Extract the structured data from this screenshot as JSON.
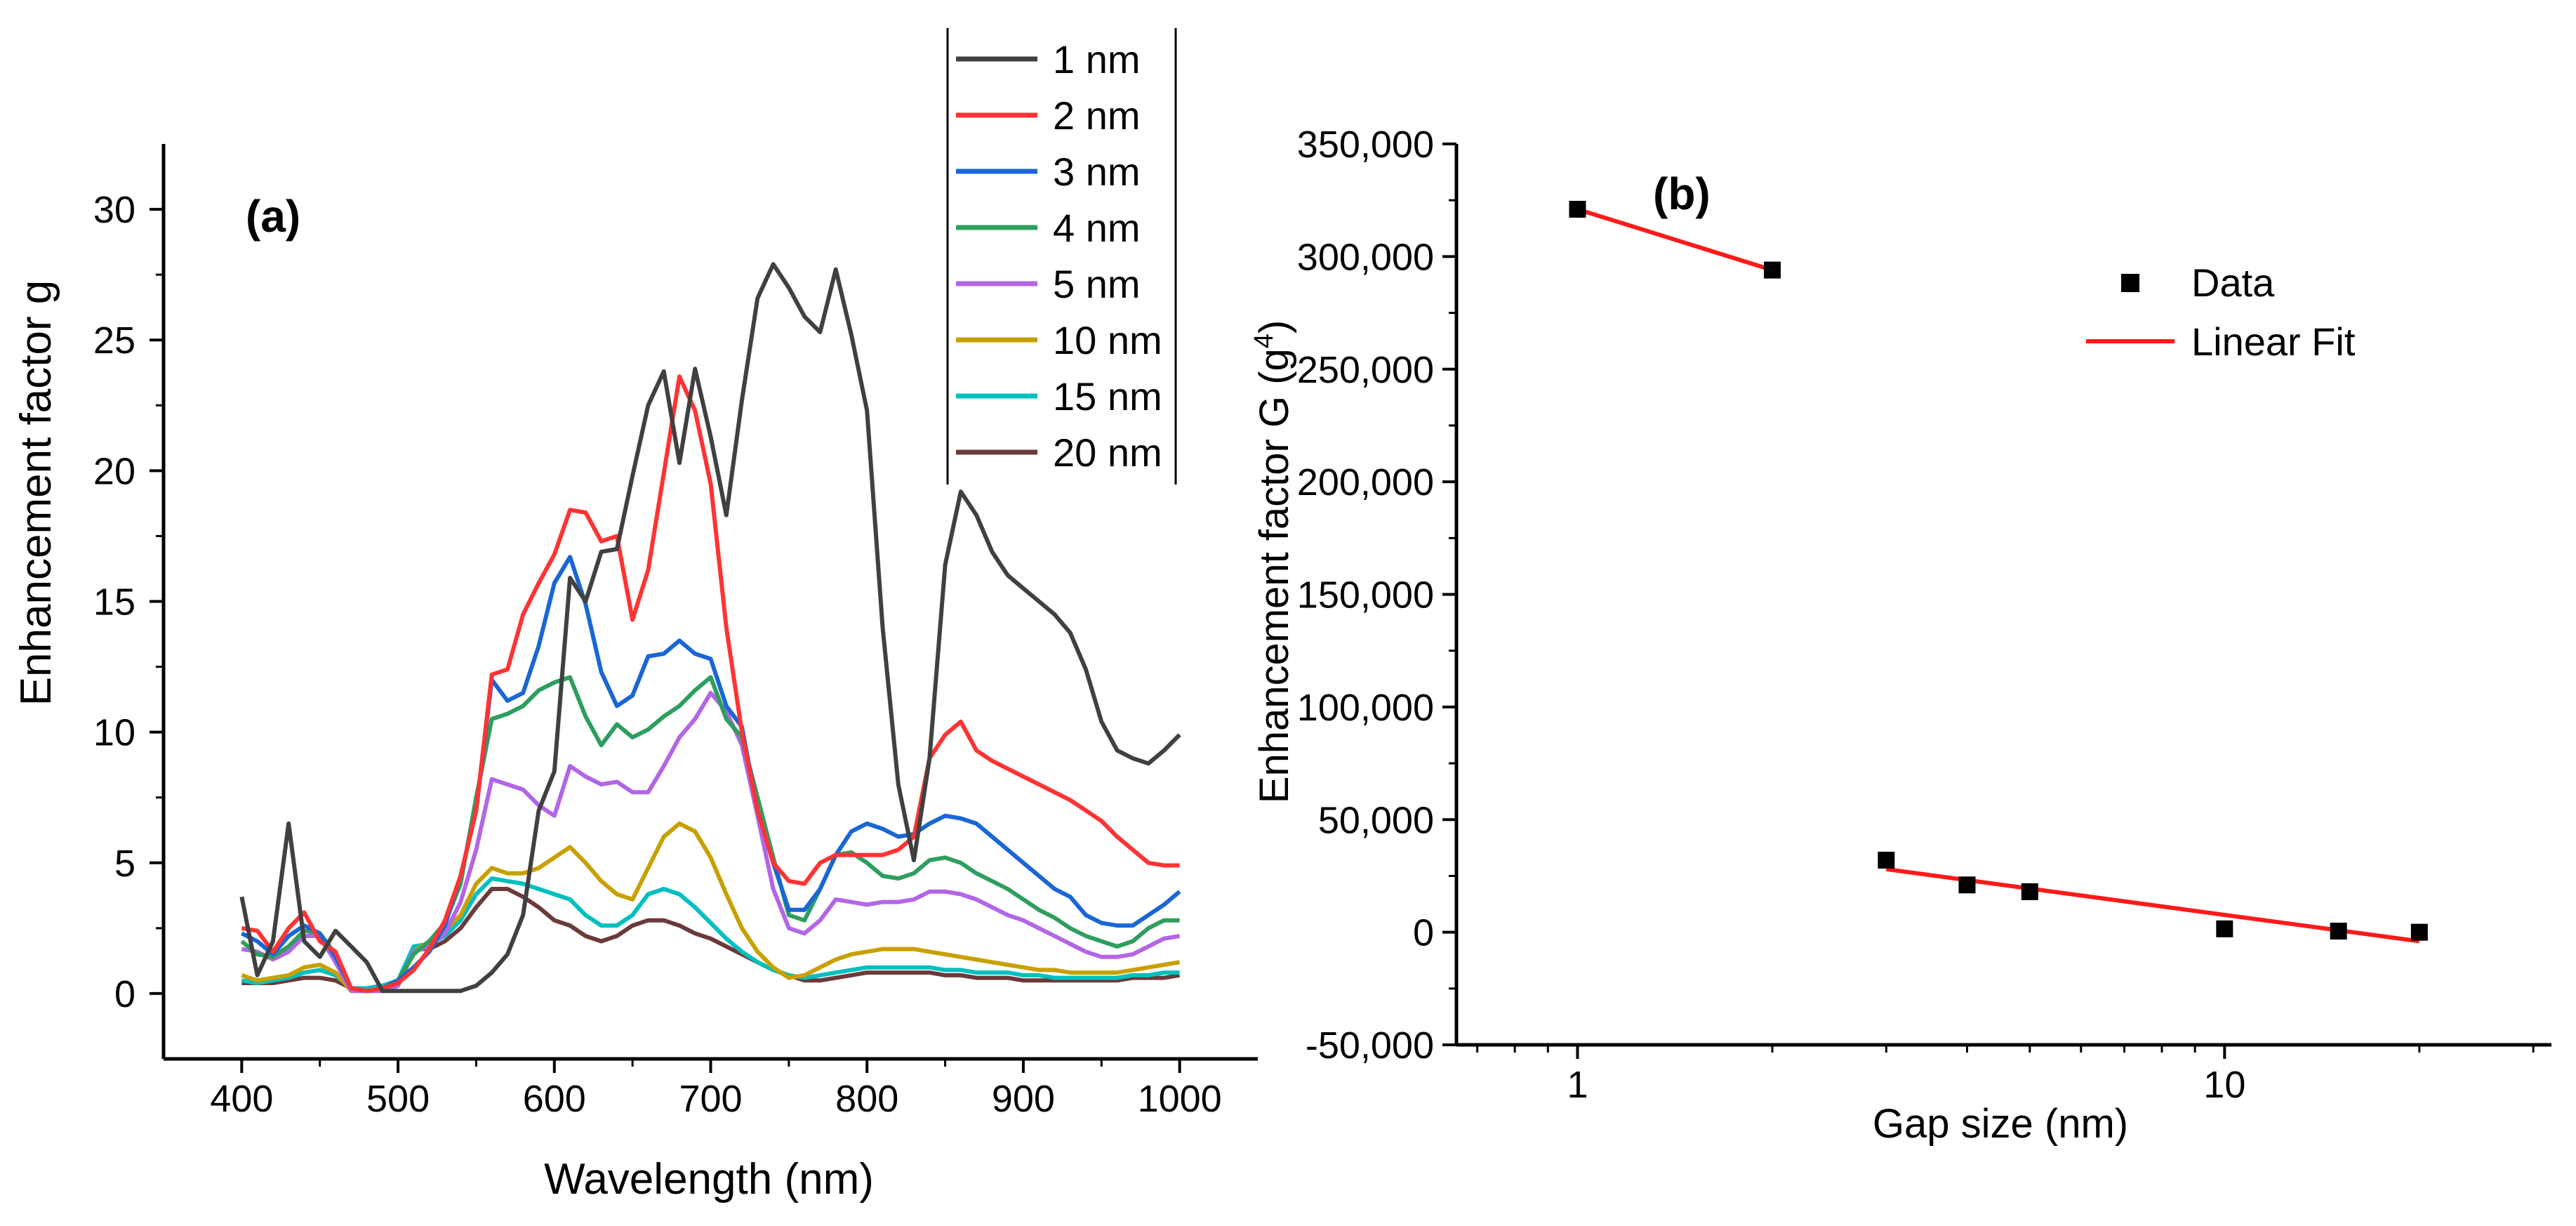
{
  "chart_data": [
    {
      "panel_label": "(a)",
      "type": "line",
      "xlabel": "Wavelength (nm)",
      "ylabel": "Enhancement factor g",
      "xlim": [
        350,
        1050
      ],
      "ylim": [
        -2.5,
        32.5
      ],
      "xticks": [
        400,
        500,
        600,
        700,
        800,
        900,
        1000
      ],
      "yticks": [
        0,
        5,
        10,
        15,
        20,
        25,
        30
      ],
      "x": [
        400,
        410,
        420,
        430,
        440,
        450,
        460,
        470,
        480,
        490,
        500,
        510,
        520,
        530,
        540,
        550,
        560,
        570,
        580,
        590,
        600,
        610,
        620,
        630,
        640,
        650,
        660,
        670,
        680,
        690,
        700,
        710,
        720,
        730,
        740,
        750,
        760,
        770,
        780,
        790,
        800,
        810,
        820,
        830,
        840,
        850,
        860,
        870,
        880,
        890,
        900,
        910,
        920,
        930,
        940,
        950,
        960,
        970,
        980,
        990,
        1000
      ],
      "legend_position": "top-center",
      "series": [
        {
          "name": "1 nm",
          "color": "#404040",
          "values": [
            3.7,
            0.7,
            2.0,
            6.5,
            2.0,
            1.4,
            2.4,
            1.8,
            1.2,
            0.1,
            0.1,
            0.1,
            0.1,
            0.1,
            0.1,
            0.3,
            0.8,
            1.5,
            3.0,
            7.0,
            8.5,
            15.9,
            15.0,
            16.9,
            17.0,
            19.8,
            22.5,
            23.8,
            20.3,
            23.9,
            21.3,
            18.3,
            22.7,
            26.6,
            27.9,
            27.0,
            25.9,
            25.3,
            27.7,
            25.2,
            22.3,
            14.0,
            8.0,
            5.1,
            9.0,
            16.4,
            19.2,
            18.3,
            16.9,
            16.0,
            15.5,
            15.0,
            14.5,
            13.8,
            12.4,
            10.4,
            9.3,
            9.0,
            8.8,
            9.3,
            9.9
          ]
        },
        {
          "name": "2 nm",
          "color": "#ff3333",
          "values": [
            2.5,
            2.4,
            1.6,
            2.5,
            3.1,
            2.0,
            1.6,
            0.2,
            0.1,
            0.2,
            0.4,
            0.9,
            1.7,
            2.8,
            4.5,
            7.0,
            12.2,
            12.4,
            14.5,
            15.7,
            16.8,
            18.5,
            18.4,
            17.3,
            17.5,
            14.3,
            16.2,
            19.9,
            23.6,
            22.3,
            19.5,
            14.0,
            10.0,
            7.0,
            5.0,
            4.3,
            4.2,
            5.0,
            5.3,
            5.3,
            5.3,
            5.3,
            5.5,
            6.0,
            9.0,
            9.9,
            10.4,
            9.3,
            8.9,
            8.6,
            8.3,
            8.0,
            7.7,
            7.4,
            7.0,
            6.6,
            6.0,
            5.5,
            5.0,
            4.9,
            4.9
          ]
        },
        {
          "name": "3 nm",
          "color": "#1a66d6",
          "values": [
            2.3,
            2.0,
            1.5,
            2.2,
            2.6,
            2.3,
            1.4,
            0.2,
            0.1,
            0.2,
            0.5,
            1.0,
            1.6,
            2.6,
            4.5,
            7.0,
            12.0,
            11.2,
            11.5,
            13.3,
            15.7,
            16.7,
            14.9,
            12.3,
            11.0,
            11.4,
            12.9,
            13.0,
            13.5,
            13.0,
            12.8,
            11.0,
            10.2,
            7.0,
            5.0,
            3.2,
            3.2,
            4.0,
            5.3,
            6.2,
            6.5,
            6.3,
            6.0,
            6.1,
            6.5,
            6.8,
            6.7,
            6.5,
            6.0,
            5.5,
            5.0,
            4.5,
            4.0,
            3.7,
            3.0,
            2.7,
            2.6,
            2.6,
            3.0,
            3.4,
            3.9
          ]
        },
        {
          "name": "4 nm",
          "color": "#2e9e5e",
          "values": [
            2.0,
            1.5,
            1.4,
            1.8,
            2.4,
            2.3,
            1.5,
            0.2,
            0.1,
            0.2,
            0.5,
            1.5,
            2.0,
            2.7,
            4.2,
            7.5,
            10.5,
            10.7,
            11.0,
            11.6,
            11.9,
            12.1,
            10.6,
            9.5,
            10.3,
            9.8,
            10.1,
            10.6,
            11.0,
            11.6,
            12.1,
            10.5,
            9.8,
            7.5,
            5.2,
            3.0,
            2.8,
            4.0,
            5.3,
            5.4,
            5.0,
            4.5,
            4.4,
            4.6,
            5.1,
            5.2,
            5.0,
            4.6,
            4.3,
            4.0,
            3.6,
            3.2,
            2.9,
            2.5,
            2.2,
            2.0,
            1.8,
            2.0,
            2.5,
            2.8,
            2.8
          ]
        },
        {
          "name": "5 nm",
          "color": "#b266e6",
          "values": [
            1.7,
            1.6,
            1.3,
            1.6,
            2.2,
            2.2,
            1.2,
            0.1,
            0.1,
            0.1,
            0.3,
            1.6,
            1.8,
            2.3,
            3.5,
            5.5,
            8.2,
            8.0,
            7.8,
            7.2,
            6.8,
            8.7,
            8.3,
            8.0,
            8.1,
            7.7,
            7.7,
            8.7,
            9.8,
            10.5,
            11.5,
            10.8,
            9.5,
            6.8,
            4.0,
            2.5,
            2.3,
            2.8,
            3.6,
            3.5,
            3.4,
            3.5,
            3.5,
            3.6,
            3.9,
            3.9,
            3.8,
            3.6,
            3.3,
            3.0,
            2.8,
            2.5,
            2.2,
            1.9,
            1.6,
            1.4,
            1.4,
            1.5,
            1.8,
            2.1,
            2.2
          ]
        },
        {
          "name": "10 nm",
          "color": "#c8a000",
          "values": [
            0.7,
            0.5,
            0.6,
            0.7,
            1.0,
            1.1,
            0.8,
            0.1,
            0.1,
            0.1,
            0.3,
            1.6,
            2.0,
            2.4,
            3.0,
            4.2,
            4.8,
            4.6,
            4.6,
            4.8,
            5.2,
            5.6,
            5.0,
            4.3,
            3.8,
            3.6,
            4.8,
            6.0,
            6.5,
            6.2,
            5.2,
            3.8,
            2.5,
            1.6,
            1.0,
            0.6,
            0.7,
            1.0,
            1.3,
            1.5,
            1.6,
            1.7,
            1.7,
            1.7,
            1.6,
            1.5,
            1.4,
            1.3,
            1.2,
            1.1,
            1.0,
            0.9,
            0.9,
            0.8,
            0.8,
            0.8,
            0.8,
            0.9,
            1.0,
            1.1,
            1.2
          ]
        },
        {
          "name": "15 nm",
          "color": "#00bfbf",
          "values": [
            0.5,
            0.4,
            0.5,
            0.6,
            0.8,
            0.9,
            0.7,
            0.2,
            0.2,
            0.3,
            0.5,
            1.8,
            1.9,
            2.2,
            2.8,
            3.8,
            4.4,
            4.3,
            4.2,
            4.0,
            3.8,
            3.6,
            3.0,
            2.6,
            2.6,
            3.0,
            3.8,
            4.0,
            3.8,
            3.3,
            2.7,
            2.1,
            1.6,
            1.2,
            0.9,
            0.7,
            0.6,
            0.7,
            0.8,
            0.9,
            1.0,
            1.0,
            1.0,
            1.0,
            1.0,
            0.9,
            0.9,
            0.8,
            0.8,
            0.8,
            0.7,
            0.7,
            0.6,
            0.6,
            0.6,
            0.6,
            0.6,
            0.7,
            0.7,
            0.8,
            0.8
          ]
        },
        {
          "name": "20 nm",
          "color": "#6b3a3a",
          "values": [
            0.4,
            0.4,
            0.4,
            0.5,
            0.6,
            0.6,
            0.5,
            0.2,
            0.2,
            0.3,
            0.5,
            1.7,
            1.7,
            2.0,
            2.5,
            3.3,
            4.0,
            4.0,
            3.7,
            3.3,
            2.8,
            2.6,
            2.2,
            2.0,
            2.2,
            2.6,
            2.8,
            2.8,
            2.6,
            2.3,
            2.1,
            1.8,
            1.5,
            1.2,
            0.9,
            0.7,
            0.5,
            0.5,
            0.6,
            0.7,
            0.8,
            0.8,
            0.8,
            0.8,
            0.8,
            0.7,
            0.7,
            0.6,
            0.6,
            0.6,
            0.5,
            0.5,
            0.5,
            0.5,
            0.5,
            0.5,
            0.5,
            0.6,
            0.6,
            0.6,
            0.7
          ]
        }
      ]
    },
    {
      "panel_label": "(b)",
      "type": "scatter",
      "xlabel": "Gap size (nm)",
      "ylabel_main": "Enhancement factor G (g",
      "ylabel_sup": "4",
      "ylabel_close": ")",
      "xscale": "log",
      "xlim": [
        0.65,
        32
      ],
      "ylim": [
        -50000,
        350000
      ],
      "xticks": [
        1,
        10
      ],
      "xtick_labels": [
        "1",
        "10"
      ],
      "yticks": [
        -50000,
        0,
        50000,
        100000,
        150000,
        200000,
        250000,
        300000,
        350000
      ],
      "ytick_labels": [
        "-50,000",
        "0",
        "50,000",
        "100,000",
        "150,000",
        "200,000",
        "250,000",
        "300,000",
        "350,000"
      ],
      "legend_position": "top-right",
      "legend": {
        "data": "Data",
        "fit": "Linear Fit"
      },
      "data_points": {
        "x": [
          1,
          2,
          3,
          4,
          5,
          10,
          15,
          20
        ],
        "y": [
          321000,
          294000,
          32000,
          21000,
          18000,
          1500,
          500,
          0
        ]
      },
      "fit_lines": [
        {
          "x": [
            1,
            2
          ],
          "y": [
            321000,
            294000
          ]
        },
        {
          "x": [
            3,
            20
          ],
          "y": [
            28000,
            -4000
          ]
        }
      ],
      "colors": {
        "data": "#000000",
        "fit": "#ff1a1a"
      }
    }
  ]
}
